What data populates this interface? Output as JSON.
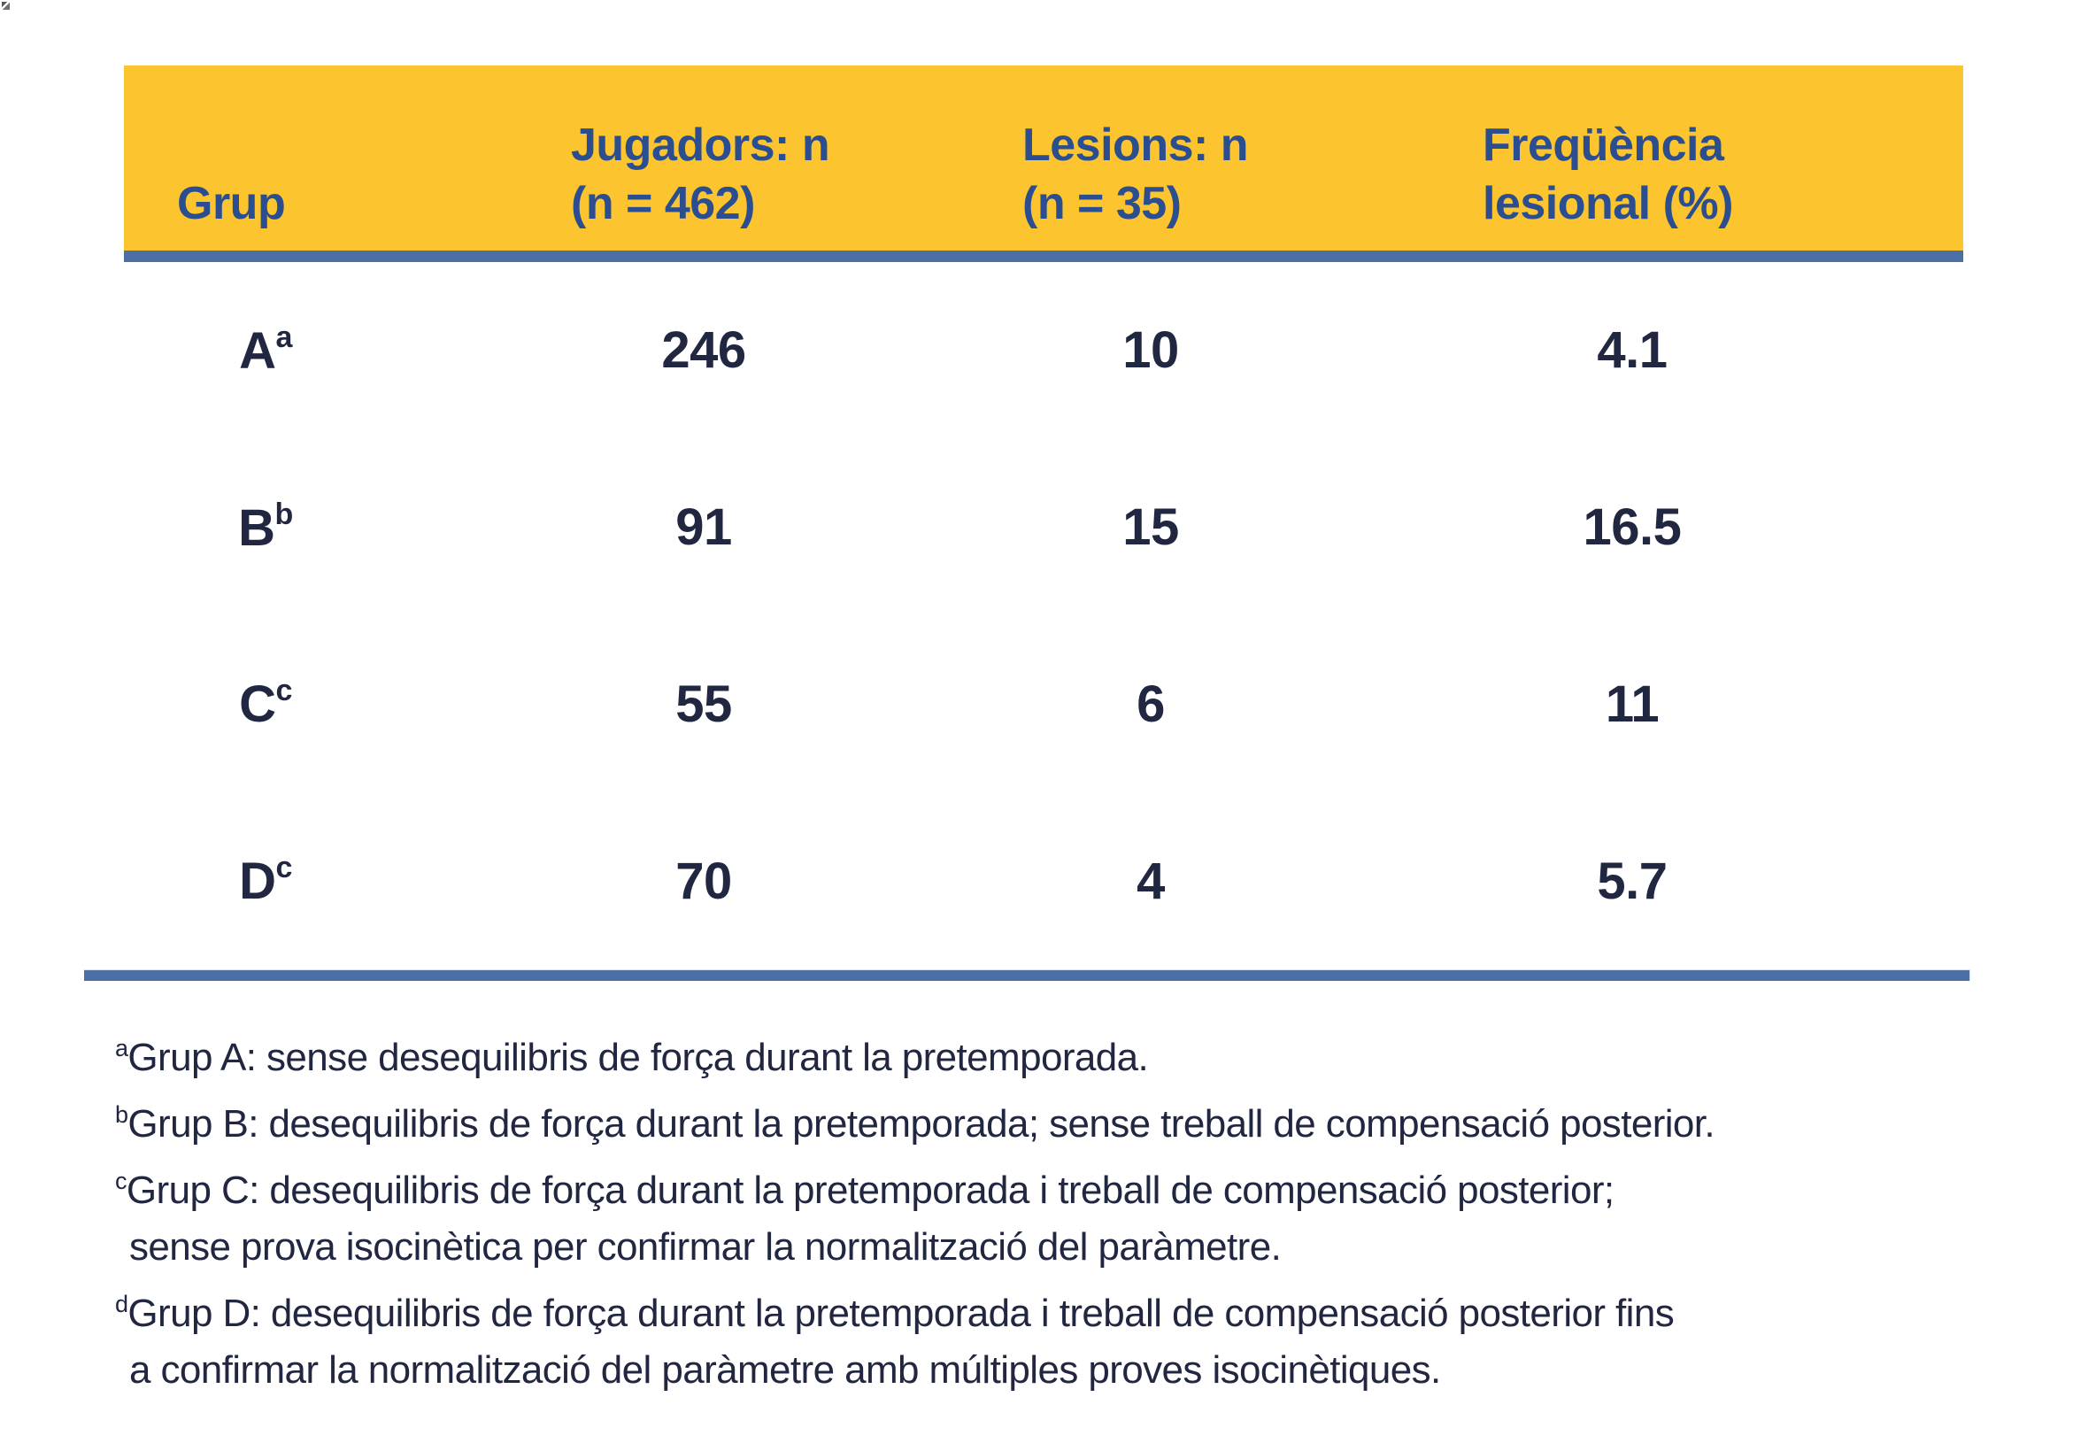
{
  "colors": {
    "header_bg": "#FCC42F",
    "header_text": "#2A4E8F",
    "body_text": "#212741",
    "rule": "#4C6FA6"
  },
  "table": {
    "columns": {
      "grup": {
        "line1": "Grup",
        "line2": ""
      },
      "jugadors": {
        "line1": "Jugadors: n",
        "line2": "(n = 462)"
      },
      "lesions": {
        "line1": "Lesions: n",
        "line2": "(n = 35)"
      },
      "frequencia": {
        "line1": "Freqüència",
        "line2": "lesional (%)"
      }
    },
    "rows": [
      {
        "grup": "A",
        "sup": "a",
        "jugadors": "246",
        "lesions": "10",
        "frequencia": "4.1"
      },
      {
        "grup": "B",
        "sup": "b",
        "jugadors": "91",
        "lesions": "15",
        "frequencia": "16.5"
      },
      {
        "grup": "C",
        "sup": "c",
        "jugadors": "55",
        "lesions": "6",
        "frequencia": "11"
      },
      {
        "grup": "D",
        "sup": "c",
        "jugadors": "70",
        "lesions": "4",
        "frequencia": "5.7"
      }
    ]
  },
  "footnotes": [
    {
      "sup": "a",
      "text": "Grup A: sense desequilibris de força durant la pretemporada."
    },
    {
      "sup": "b",
      "text": "Grup B: desequilibris de força durant la pretemporada; sense treball de compensació posterior."
    },
    {
      "sup": "c",
      "text": "Grup C: desequilibris de força durant la pretemporada i treball de compensació posterior;"
    },
    {
      "sup": "",
      "text": "sense prova isocinètica per confirmar la normalització del paràmetre."
    },
    {
      "sup": "d",
      "text": "Grup D: desequilibris de força durant la pretemporada i treball de compensació posterior fins"
    },
    {
      "sup": "",
      "text": "a confirmar la normalització del paràmetre amb múltiples proves isocinètiques."
    }
  ]
}
